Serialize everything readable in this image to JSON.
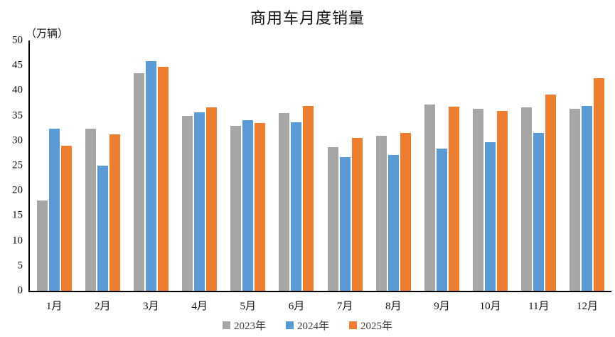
{
  "title": "商用车月度销量",
  "unit_label": "（万辆）",
  "colors": {
    "series_2023": "#A6A6A6",
    "series_2024": "#5B9BD5",
    "series_2025": "#ED7D31",
    "axis_line": "#000000",
    "text": "#111111"
  },
  "chart_data": {
    "type": "bar",
    "title": "商用车月度销量",
    "ylabel": "（万辆）",
    "xlabel": "",
    "categories": [
      "1月",
      "2月",
      "3月",
      "4月",
      "5月",
      "6月",
      "7月",
      "8月",
      "9月",
      "10月",
      "11月",
      "12月"
    ],
    "series": [
      {
        "name": "2023年",
        "color": "#A6A6A6",
        "values": [
          18.0,
          32.4,
          43.5,
          35.0,
          33.0,
          35.5,
          28.7,
          31.0,
          37.2,
          36.4,
          36.6,
          36.3
        ]
      },
      {
        "name": "2024年",
        "color": "#5B9BD5",
        "values": [
          32.4,
          25.0,
          45.9,
          35.6,
          34.1,
          33.6,
          26.7,
          27.2,
          28.4,
          29.7,
          31.5,
          36.9
        ]
      },
      {
        "name": "2025年",
        "color": "#ED7D31",
        "values": [
          29.0,
          31.2,
          44.7,
          36.7,
          33.5,
          36.9,
          30.5,
          31.6,
          36.8,
          36.0,
          39.2,
          42.5
        ]
      }
    ],
    "ylim": [
      0,
      50
    ],
    "y_ticks": [
      0,
      5,
      10,
      15,
      20,
      25,
      30,
      35,
      40,
      45,
      50
    ],
    "grid": false,
    "legend_position": "bottom"
  }
}
